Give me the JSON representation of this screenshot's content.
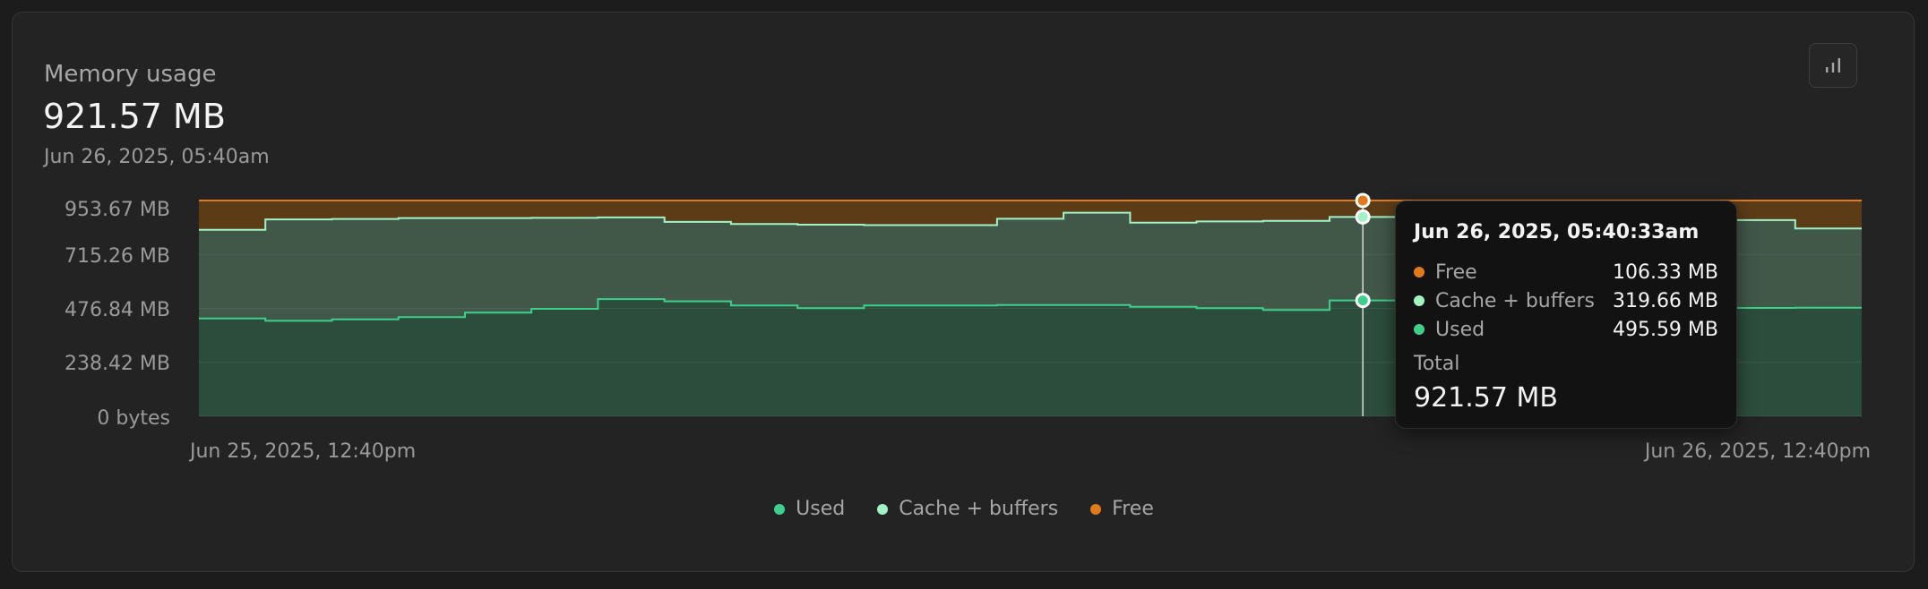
{
  "panel": {
    "title": "Memory usage",
    "value": "921.57 MB",
    "timestamp": "Jun 26, 2025, 05:40am",
    "button_icon": "bar-chart-icon"
  },
  "colors": {
    "used": "#3ecf8e",
    "cache": "#a2f2c8",
    "free": "#e07a1a",
    "used_fill": "#2c4d3c",
    "cache_fill": "#415748",
    "free_fill": "#5c3c17"
  },
  "tooltip": {
    "time": "Jun 26, 2025, 05:40:33am",
    "rows": [
      {
        "name": "Free",
        "value": "106.33 MB"
      },
      {
        "name": "Cache + buffers",
        "value": "319.66 MB"
      },
      {
        "name": "Used",
        "value": "495.59 MB"
      }
    ],
    "total_label": "Total",
    "total_value": "921.57 MB"
  },
  "chart_data": {
    "type": "area",
    "stacked": true,
    "step": true,
    "x": [
      "Jun 25, 2025, 12:40pm",
      "",
      "",
      "",
      "",
      "",
      "",
      "",
      "",
      "",
      "",
      "",
      "",
      "",
      "",
      "",
      "",
      "",
      "",
      "",
      "",
      "",
      "",
      "",
      "Jun 26, 2025, 12:40pm"
    ],
    "x_tick_labels": [
      "Jun 25, 2025, 12:40pm",
      "Jun 26, 2025, 12:40pm"
    ],
    "y_tick_labels": [
      "953.67 MB",
      "715.26 MB",
      "476.84 MB",
      "238.42 MB",
      "0 bytes"
    ],
    "ylim": [
      0,
      953.67
    ],
    "series": [
      {
        "name": "Used",
        "values": [
          432,
          422,
          428,
          438,
          458,
          475,
          518,
          508,
          490,
          478,
          490,
          490,
          492,
          492,
          484,
          478,
          470,
          512,
          505,
          495,
          496,
          490,
          480,
          479,
          480
        ]
      },
      {
        "name": "Cache + buffers",
        "values": [
          392,
          448,
          444,
          438,
          418,
          402,
          361,
          351,
          360,
          369,
          355,
          355,
          381,
          408,
          372,
          383,
          394,
          369,
          374,
          380,
          326,
          377,
          387,
          388,
          350
        ]
      },
      {
        "name": "Free",
        "values": [
          129.67,
          83.67,
          81.67,
          77.67,
          77.67,
          76.67,
          74.67,
          94.67,
          103.67,
          106.67,
          108.67,
          108.67,
          80.67,
          53.67,
          97.67,
          92.67,
          89.67,
          72.67,
          74.67,
          78.67,
          131.67,
          86.67,
          86.67,
          86.67,
          123.67
        ]
      }
    ]
  },
  "legend": [
    "Used",
    "Cache + buffers",
    "Free"
  ]
}
